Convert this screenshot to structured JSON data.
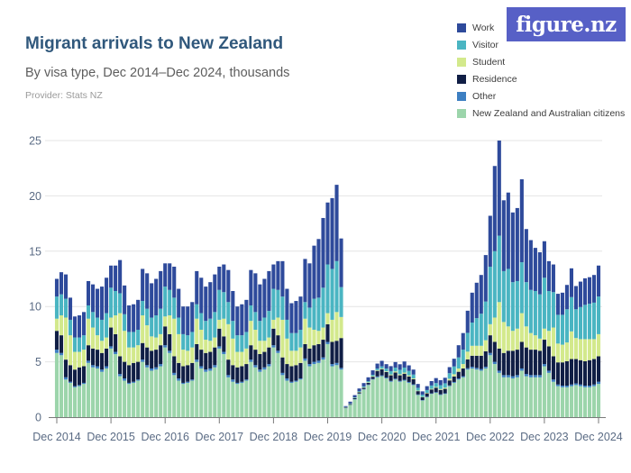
{
  "header": {
    "title": "Migrant arrivals to New Zealand",
    "subtitle": "By visa type, Dec 2014–Dec 2024, thousands",
    "provider": "Provider: Stats NZ"
  },
  "logo": {
    "text": "figure.nz",
    "bg_color": "#5760c6",
    "text_color": "#ffffff"
  },
  "chart_data": {
    "type": "bar",
    "stacked": true,
    "title": "Migrant arrivals to New Zealand",
    "subtitle": "By visa type, Dec 2014–Dec 2024, thousands",
    "unit": "thousands",
    "ylim": [
      0,
      25
    ],
    "y_ticks": [
      "0",
      "5",
      "10",
      "15",
      "20",
      "25"
    ],
    "y_tick_values": [
      0,
      5,
      10,
      15,
      20,
      25
    ],
    "x_tick_labels": [
      "Dec 2014",
      "Dec 2015",
      "Dec 2016",
      "Dec 2017",
      "Dec 2018",
      "Dec 2019",
      "Dec 2020",
      "Dec 2021",
      "Dec 2022",
      "Dec 2023",
      "Dec 2024"
    ],
    "x_start_month": "Dec 2014",
    "x_end_month": "Dec 2024",
    "months_total": 121,
    "grid": true,
    "legend_position": "top-right",
    "legend_order_top_down": [
      "Work",
      "Visitor",
      "Student",
      "Residence",
      "Other",
      "New Zealand and Australian citizens"
    ],
    "axis_color": "#7a7a7a",
    "grid_color": "#e4e4e4",
    "tick_label_color": "#5a6b84",
    "series": [
      {
        "name": "New Zealand and Australian citizens",
        "color": "#9cd5ab",
        "values": [
          5.8,
          5.6,
          3.4,
          3.1,
          2.7,
          2.8,
          3.0,
          4.9,
          4.5,
          4.4,
          4.1,
          4.4,
          6.2,
          5.7,
          3.7,
          3.3,
          3.0,
          3.1,
          3.3,
          5.0,
          4.5,
          4.2,
          4.3,
          4.6,
          6.3,
          5.8,
          3.8,
          3.3,
          3.0,
          3.1,
          3.3,
          5.0,
          4.4,
          4.1,
          4.2,
          4.5,
          6.2,
          5.7,
          3.6,
          3.2,
          3.0,
          3.1,
          3.3,
          5.0,
          4.5,
          4.1,
          4.3,
          4.6,
          6.3,
          5.8,
          3.8,
          3.3,
          3.1,
          3.2,
          3.4,
          5.1,
          4.6,
          4.8,
          4.9,
          5.2,
          6.6,
          4.6,
          4.7,
          4.3,
          0.8,
          1.1,
          1.6,
          2.1,
          2.5,
          2.9,
          3.4,
          3.6,
          3.7,
          3.5,
          3.2,
          3.4,
          3.2,
          3.3,
          3.1,
          2.9,
          2.0,
          1.5,
          1.8,
          2.1,
          2.2,
          2.0,
          2.1,
          2.8,
          3.1,
          3.4,
          3.6,
          4.3,
          4.4,
          4.3,
          4.2,
          4.4,
          5.6,
          4.8,
          4.0,
          3.6,
          3.6,
          3.5,
          3.6,
          4.2,
          3.7,
          3.6,
          3.6,
          3.6,
          4.6,
          4.0,
          3.2,
          2.8,
          2.7,
          2.7,
          2.8,
          2.9,
          2.8,
          2.7,
          2.7,
          2.8,
          3.0
        ]
      },
      {
        "name": "Other",
        "color": "#3d7fc2",
        "values": [
          0.3,
          0.2,
          0.2,
          0.1,
          0.1,
          0.1,
          0.1,
          0.2,
          0.2,
          0.2,
          0.2,
          0.2,
          0.2,
          0.2,
          0.2,
          0.2,
          0.1,
          0.1,
          0.1,
          0.2,
          0.2,
          0.2,
          0.2,
          0.2,
          0.2,
          0.2,
          0.2,
          0.2,
          0.1,
          0.1,
          0.1,
          0.2,
          0.2,
          0.2,
          0.2,
          0.2,
          0.2,
          0.2,
          0.2,
          0.2,
          0.1,
          0.1,
          0.1,
          0.2,
          0.2,
          0.2,
          0.2,
          0.2,
          0.2,
          0.2,
          0.2,
          0.2,
          0.1,
          0.1,
          0.1,
          0.2,
          0.2,
          0.2,
          0.2,
          0.2,
          0.2,
          0.2,
          0.2,
          0.15,
          0.02,
          0.02,
          0.03,
          0.04,
          0.04,
          0.05,
          0.05,
          0.08,
          0.08,
          0.08,
          0.08,
          0.08,
          0.08,
          0.08,
          0.08,
          0.07,
          0.05,
          0.04,
          0.05,
          0.05,
          0.06,
          0.06,
          0.06,
          0.07,
          0.08,
          0.1,
          0.1,
          0.12,
          0.15,
          0.15,
          0.15,
          0.15,
          0.2,
          0.2,
          0.2,
          0.2,
          0.2,
          0.2,
          0.2,
          0.2,
          0.2,
          0.2,
          0.2,
          0.2,
          0.2,
          0.2,
          0.2,
          0.15,
          0.15,
          0.15,
          0.15,
          0.15,
          0.15,
          0.15,
          0.15,
          0.15,
          0.2
        ]
      },
      {
        "name": "Residence",
        "color": "#101e45",
        "values": [
          1.7,
          1.6,
          1.6,
          1.5,
          1.5,
          1.6,
          1.5,
          1.4,
          1.5,
          1.5,
          1.5,
          1.6,
          1.7,
          1.6,
          1.6,
          1.5,
          1.6,
          1.7,
          1.6,
          1.5,
          1.6,
          1.6,
          1.6,
          1.7,
          1.7,
          1.5,
          1.5,
          1.4,
          1.5,
          1.5,
          1.5,
          1.4,
          1.5,
          1.5,
          1.5,
          1.6,
          1.6,
          1.4,
          1.4,
          1.3,
          1.4,
          1.4,
          1.4,
          1.3,
          1.4,
          1.4,
          1.4,
          1.5,
          1.5,
          1.4,
          1.4,
          1.3,
          1.4,
          1.4,
          1.4,
          1.3,
          1.4,
          1.5,
          1.5,
          1.6,
          1.6,
          2.0,
          2.0,
          2.7,
          0.05,
          0.06,
          0.08,
          0.1,
          0.12,
          0.15,
          0.2,
          0.5,
          0.55,
          0.5,
          0.5,
          0.55,
          0.5,
          0.55,
          0.5,
          0.45,
          0.3,
          0.25,
          0.3,
          0.35,
          0.4,
          0.4,
          0.4,
          0.45,
          0.5,
          0.6,
          0.7,
          0.8,
          1.0,
          1.1,
          1.2,
          1.4,
          1.6,
          1.8,
          2.0,
          2.0,
          2.2,
          2.3,
          2.3,
          2.4,
          2.4,
          2.3,
          2.3,
          2.2,
          2.2,
          2.2,
          2.1,
          2.0,
          2.1,
          2.2,
          2.3,
          2.2,
          2.2,
          2.2,
          2.3,
          2.3,
          2.3
        ]
      },
      {
        "name": "Student",
        "color": "#d3e98c",
        "values": [
          1.1,
          1.8,
          3.8,
          2.7,
          1.6,
          1.4,
          1.5,
          2.4,
          1.9,
          1.3,
          1.1,
          1.0,
          0.9,
          1.7,
          3.9,
          2.8,
          1.6,
          1.4,
          1.5,
          2.5,
          2.0,
          1.3,
          1.1,
          1.0,
          0.9,
          1.7,
          3.4,
          2.6,
          1.5,
          1.3,
          1.4,
          2.3,
          1.8,
          1.2,
          1.0,
          0.9,
          0.8,
          1.6,
          3.2,
          2.4,
          1.4,
          1.3,
          1.4,
          2.2,
          1.8,
          1.2,
          1.0,
          0.9,
          0.8,
          1.6,
          3.4,
          2.3,
          1.4,
          1.3,
          1.4,
          2.3,
          1.9,
          1.4,
          1.2,
          1.1,
          1.0,
          2.0,
          2.6,
          1.9,
          0.02,
          0.02,
          0.03,
          0.04,
          0.04,
          0.05,
          0.06,
          0.06,
          0.06,
          0.06,
          0.08,
          0.1,
          0.1,
          0.1,
          0.1,
          0.08,
          0.05,
          0.04,
          0.05,
          0.06,
          0.07,
          0.08,
          0.1,
          0.15,
          0.2,
          0.3,
          0.4,
          0.7,
          0.9,
          0.9,
          0.9,
          1.0,
          1.0,
          2.2,
          4.2,
          2.8,
          2.2,
          1.8,
          1.9,
          2.6,
          1.9,
          1.5,
          1.3,
          1.1,
          1.0,
          1.4,
          2.6,
          1.7,
          1.6,
          1.7,
          2.5,
          1.9,
          1.9,
          2.0,
          1.9,
          1.8,
          2.0
        ]
      },
      {
        "name": "Visitor",
        "color": "#4ab5c2",
        "values": [
          2.0,
          1.9,
          1.7,
          1.4,
          1.3,
          1.3,
          1.3,
          1.2,
          1.4,
          1.6,
          1.9,
          2.2,
          2.7,
          2.2,
          1.8,
          1.5,
          1.4,
          1.4,
          1.4,
          1.3,
          1.5,
          1.7,
          2.0,
          2.3,
          2.7,
          2.3,
          1.9,
          1.5,
          1.4,
          1.4,
          1.4,
          1.3,
          1.5,
          1.7,
          2.0,
          2.3,
          2.7,
          2.4,
          2.0,
          1.6,
          1.5,
          1.5,
          1.5,
          1.4,
          1.6,
          1.8,
          2.1,
          2.4,
          2.8,
          2.5,
          2.1,
          1.7,
          1.6,
          1.6,
          1.6,
          1.5,
          1.8,
          2.8,
          3.0,
          3.6,
          4.4,
          4.6,
          4.6,
          2.7,
          0.03,
          0.04,
          0.05,
          0.06,
          0.08,
          0.1,
          0.12,
          0.15,
          0.2,
          0.25,
          0.3,
          0.35,
          0.4,
          0.45,
          0.4,
          0.35,
          0.25,
          0.2,
          0.25,
          0.3,
          0.35,
          0.35,
          0.4,
          0.5,
          0.7,
          1.0,
          1.3,
          1.7,
          2.1,
          2.5,
          2.9,
          3.5,
          5.2,
          6.0,
          6.0,
          4.6,
          5.2,
          4.4,
          4.3,
          4.6,
          4.0,
          3.9,
          4.0,
          4.0,
          4.6,
          3.6,
          3.2,
          2.6,
          2.7,
          3.0,
          3.1,
          2.6,
          2.9,
          3.1,
          3.2,
          3.3,
          3.4
        ]
      },
      {
        "name": "Work",
        "color": "#2e4a9b",
        "values": [
          1.6,
          2.0,
          2.2,
          2.0,
          1.9,
          2.0,
          2.1,
          2.2,
          2.5,
          2.6,
          3.0,
          3.2,
          2.0,
          2.3,
          3.0,
          2.6,
          2.4,
          2.5,
          2.7,
          2.9,
          3.2,
          3.1,
          3.3,
          3.4,
          2.1,
          2.4,
          2.8,
          2.6,
          2.5,
          2.6,
          2.7,
          3.0,
          3.2,
          3.1,
          3.3,
          3.4,
          2.1,
          2.5,
          2.9,
          2.7,
          2.6,
          2.8,
          2.9,
          3.2,
          3.5,
          3.3,
          3.5,
          3.6,
          2.2,
          2.6,
          3.2,
          2.8,
          2.7,
          2.9,
          3.0,
          3.9,
          4.0,
          4.8,
          5.3,
          6.3,
          5.6,
          6.4,
          6.9,
          4.4,
          0.08,
          0.16,
          0.2,
          0.25,
          0.3,
          0.35,
          0.4,
          0.45,
          0.5,
          0.4,
          0.45,
          0.5,
          0.5,
          0.55,
          0.5,
          0.45,
          0.35,
          0.3,
          0.35,
          0.4,
          0.45,
          0.45,
          0.5,
          0.55,
          0.7,
          1.1,
          1.5,
          2.0,
          2.7,
          3.2,
          3.5,
          4.2,
          4.6,
          7.7,
          8.6,
          6.4,
          6.9,
          6.3,
          6.6,
          7.5,
          4.8,
          4.5,
          3.9,
          3.8,
          3.3,
          2.7,
          2.5,
          1.9,
          2.0,
          2.2,
          2.6,
          2.1,
          2.3,
          2.4,
          2.4,
          2.5,
          2.8
        ]
      }
    ]
  }
}
